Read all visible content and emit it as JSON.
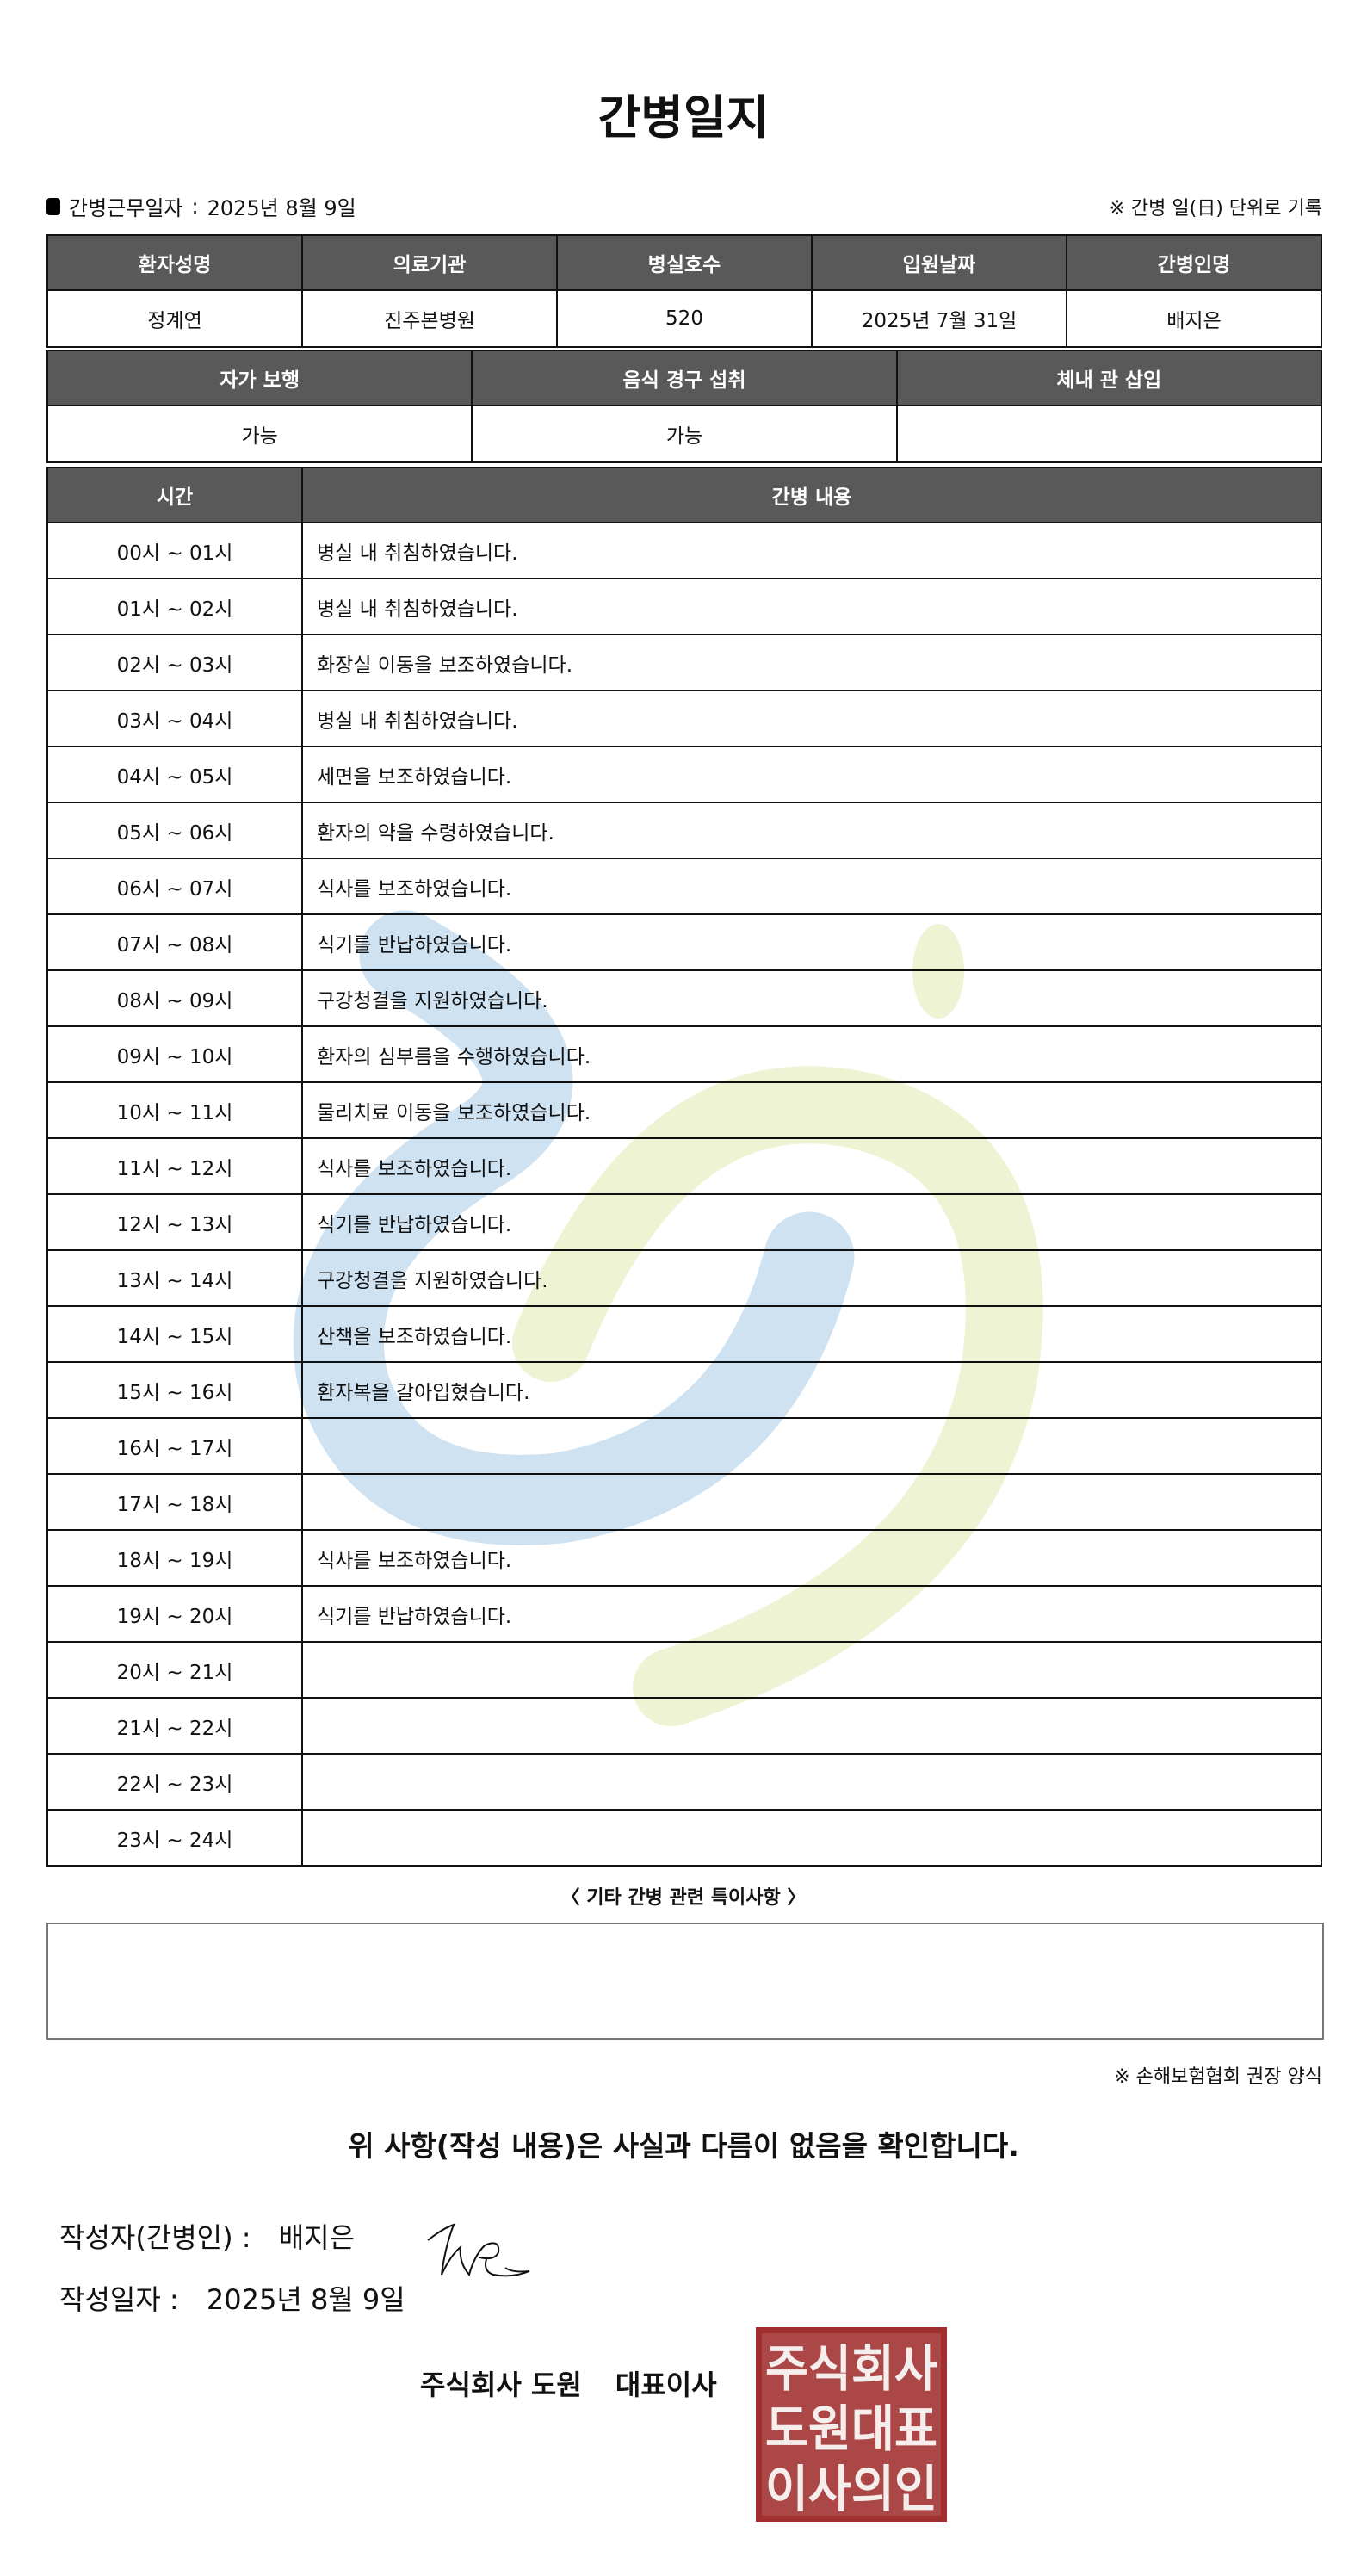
{
  "title": "간병일지",
  "work_date_label": "간병근무일자",
  "work_date": "2025년 8월 9일",
  "daily_note": "※ 간병 일(日) 단위로 기록",
  "patient_table": {
    "headers": [
      "환자성명",
      "의료기관",
      "병실호수",
      "입원날짜",
      "간병인명"
    ],
    "values": [
      "정계연",
      "진주본병원",
      "520",
      "2025년 7월 31일",
      "배지은"
    ]
  },
  "status_table": {
    "headers": [
      "자가 보행",
      "음식 경구 섭취",
      "체내 관 삽입"
    ],
    "values": [
      "가능",
      "가능",
      ""
    ]
  },
  "log_table": {
    "headers": [
      "시간",
      "간병 내용"
    ],
    "rows": [
      {
        "time": "00시 ~ 01시",
        "content": "병실 내 취침하였습니다."
      },
      {
        "time": "01시 ~ 02시",
        "content": "병실 내 취침하였습니다."
      },
      {
        "time": "02시 ~ 03시",
        "content": "화장실 이동을 보조하였습니다."
      },
      {
        "time": "03시 ~ 04시",
        "content": "병실 내 취침하였습니다."
      },
      {
        "time": "04시 ~ 05시",
        "content": "세면을 보조하였습니다."
      },
      {
        "time": "05시 ~ 06시",
        "content": "환자의 약을 수령하였습니다."
      },
      {
        "time": "06시 ~ 07시",
        "content": "식사를 보조하였습니다."
      },
      {
        "time": "07시 ~ 08시",
        "content": "식기를 반납하였습니다."
      },
      {
        "time": "08시 ~ 09시",
        "content": "구강청결을 지원하였습니다."
      },
      {
        "time": "09시 ~ 10시",
        "content": "환자의 심부름을 수행하였습니다."
      },
      {
        "time": "10시 ~ 11시",
        "content": "물리치료 이동을 보조하였습니다."
      },
      {
        "time": "11시 ~ 12시",
        "content": "식사를 보조하였습니다."
      },
      {
        "time": "12시 ~ 13시",
        "content": "식기를 반납하였습니다."
      },
      {
        "time": "13시 ~ 14시",
        "content": "구강청결을 지원하였습니다."
      },
      {
        "time": "14시 ~ 15시",
        "content": "산책을 보조하였습니다."
      },
      {
        "time": "15시 ~ 16시",
        "content": "환자복을 갈아입혔습니다."
      },
      {
        "time": "16시 ~ 17시",
        "content": ""
      },
      {
        "time": "17시 ~ 18시",
        "content": ""
      },
      {
        "time": "18시 ~ 19시",
        "content": "식사를 보조하였습니다."
      },
      {
        "time": "19시 ~ 20시",
        "content": "식기를 반납하였습니다."
      },
      {
        "time": "20시 ~ 21시",
        "content": ""
      },
      {
        "time": "21시 ~ 22시",
        "content": ""
      },
      {
        "time": "22시 ~ 23시",
        "content": ""
      },
      {
        "time": "23시 ~ 24시",
        "content": ""
      }
    ]
  },
  "remarks_heading": "〈 기타 간병 관련 특이사항 〉",
  "remarks": "",
  "form_source": "※ 손해보험협회 권장 양식",
  "confirmation": "위 사항(작성 내용)은 사실과 다름이 없음을 확인합니다.",
  "writer_label": "작성자(간병인) :",
  "writer_name": "배지은",
  "write_date_label": "작성일자 :",
  "write_date": "2025년 8월 9일",
  "company": "주식회사 도원",
  "representative": "대표이사",
  "seal_text": [
    "주식회사",
    "도원대표",
    "이사의인"
  ],
  "colors": {
    "header_bg": "#595959",
    "seal": "#a02e2e",
    "watermark_blue": "#cfe2f1",
    "watermark_green": "#eef3d3"
  }
}
